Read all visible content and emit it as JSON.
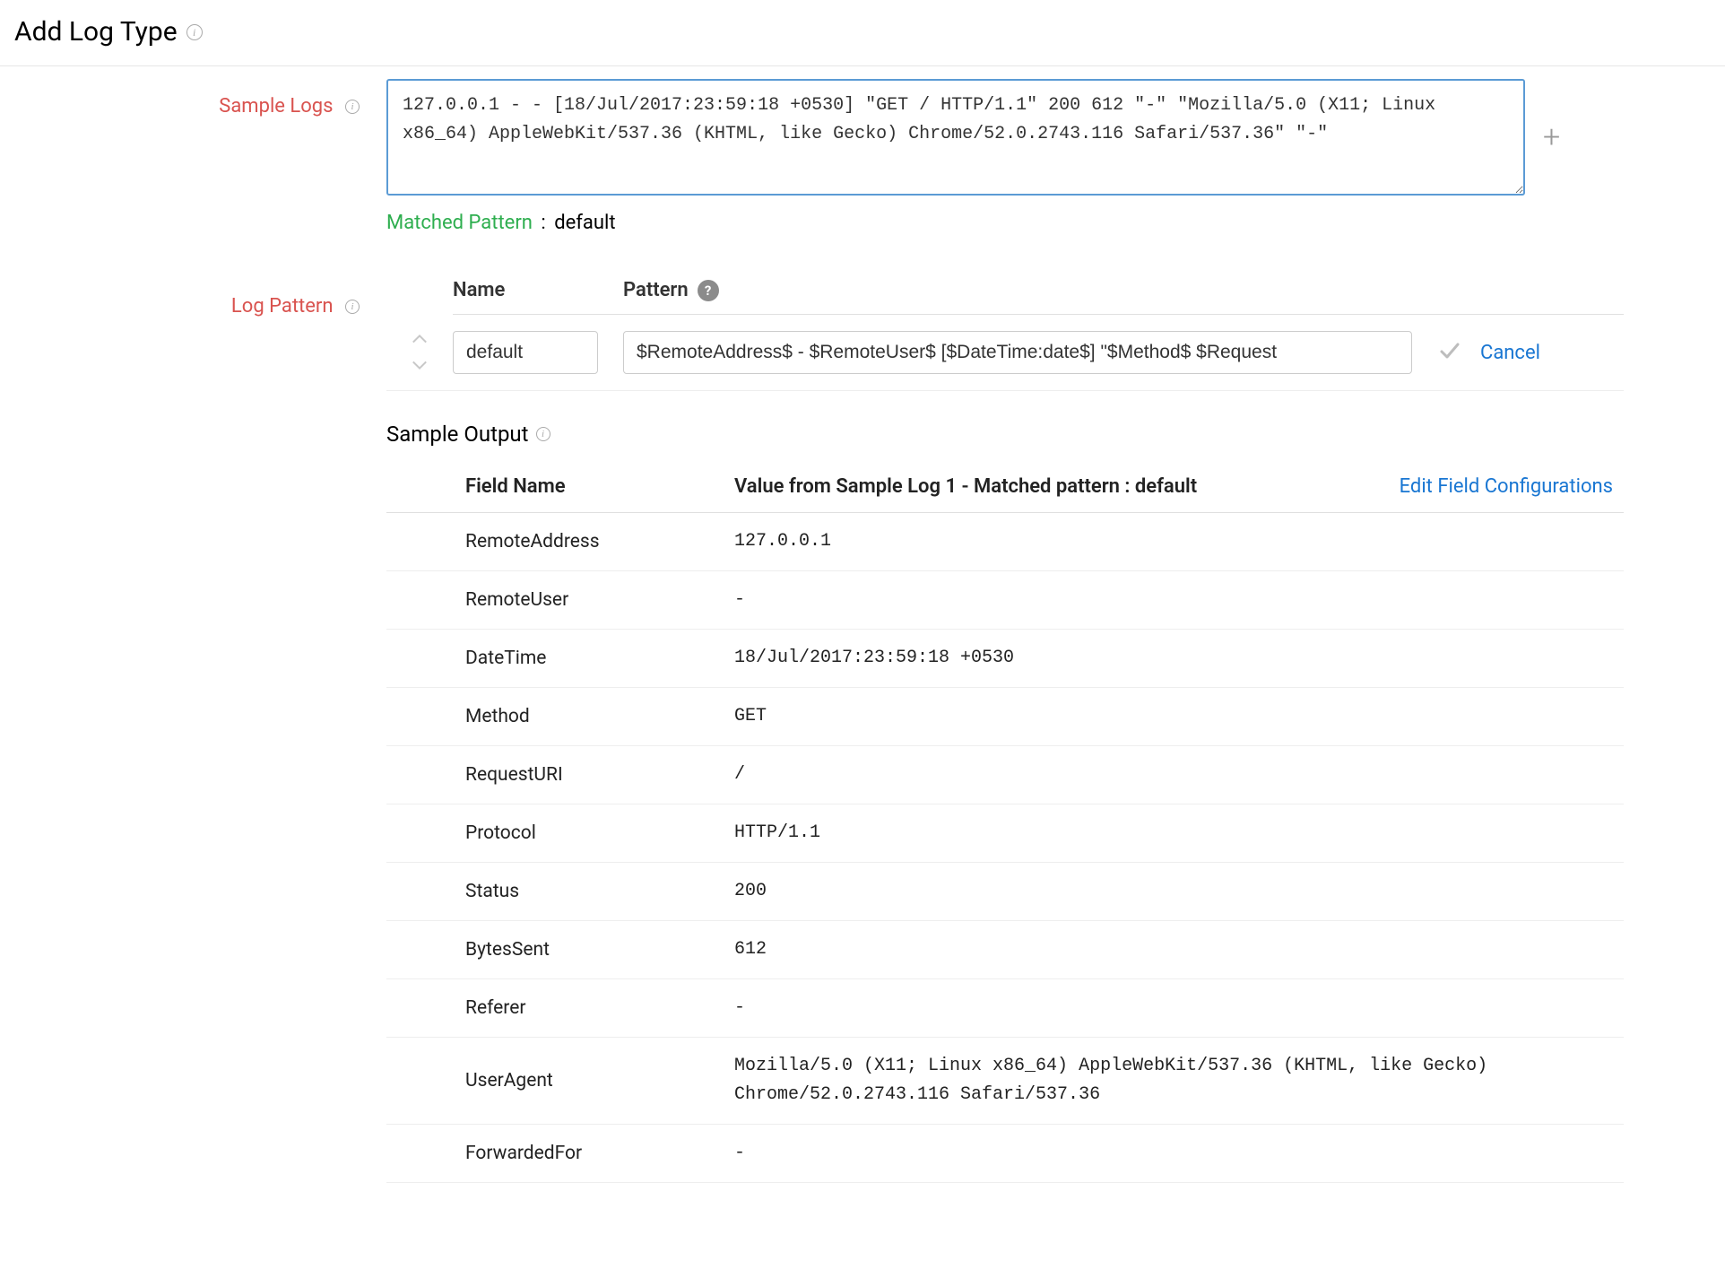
{
  "page_title": "Add Log Type",
  "labels": {
    "sample_logs": "Sample Logs",
    "log_pattern": "Log Pattern"
  },
  "sample_log_text": "127.0.0.1 - - [18/Jul/2017:23:59:18 +0530] \"GET / HTTP/1.1\" 200 612 \"-\" \"Mozilla/5.0 (X11; Linux x86_64) AppleWebKit/537.36 (KHTML, like Gecko) Chrome/52.0.2743.116 Safari/537.36\" \"-\"",
  "matched_pattern": {
    "label": "Matched Pattern",
    "separator": ":",
    "value": "default"
  },
  "pattern_table": {
    "headers": {
      "name": "Name",
      "pattern": "Pattern"
    },
    "row": {
      "name": "default",
      "pattern": "$RemoteAddress$ - $RemoteUser$ [$DateTime:date$] \"$Method$ $Request"
    },
    "cancel": "Cancel"
  },
  "sample_output": {
    "title": "Sample Output",
    "columns": {
      "field_name": "Field Name",
      "value": "Value from Sample Log 1 - Matched pattern : default"
    },
    "edit_link": "Edit Field Configurations",
    "rows": [
      {
        "field": "RemoteAddress",
        "value": "127.0.0.1"
      },
      {
        "field": "RemoteUser",
        "value": "-"
      },
      {
        "field": "DateTime",
        "value": "18/Jul/2017:23:59:18 +0530"
      },
      {
        "field": "Method",
        "value": "GET"
      },
      {
        "field": "RequestURI",
        "value": "/"
      },
      {
        "field": "Protocol",
        "value": "HTTP/1.1"
      },
      {
        "field": "Status",
        "value": "200"
      },
      {
        "field": "BytesSent",
        "value": "612"
      },
      {
        "field": "Referer",
        "value": "-"
      },
      {
        "field": "UserAgent",
        "value": "Mozilla/5.0 (X11; Linux x86_64) AppleWebKit/537.36 (KHTML, like Gecko) Chrome/52.0.2743.116 Safari/537.36"
      },
      {
        "field": "ForwardedFor",
        "value": "-"
      }
    ]
  },
  "colors": {
    "accent_blue": "#1976d2",
    "input_focus_border": "#5b9bd5",
    "label_red": "#d9534f",
    "matched_green": "#2eae4f",
    "border_gray": "#e0e0e0",
    "icon_gray": "#aaaaaa"
  }
}
